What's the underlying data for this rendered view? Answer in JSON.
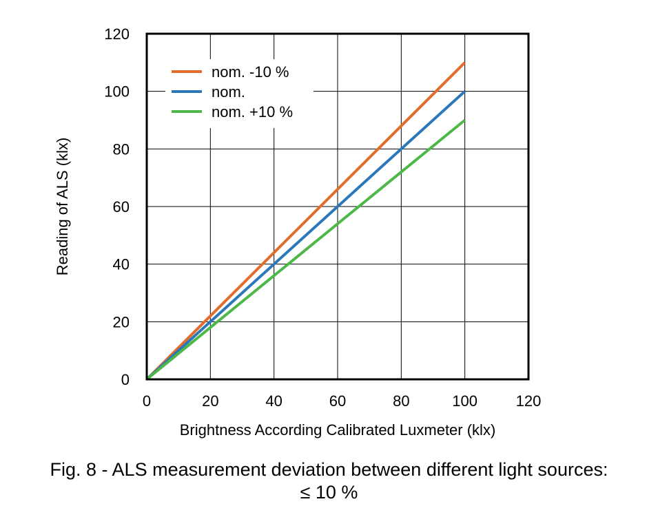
{
  "chart_data": {
    "type": "line",
    "xlabel": "Brightness According Calibrated Luxmeter (klx)",
    "ylabel": "Reading of ALS (klx)",
    "xlim": [
      0,
      120
    ],
    "ylim": [
      0,
      120
    ],
    "xticks": [
      0,
      20,
      40,
      60,
      80,
      100,
      120
    ],
    "yticks": [
      0,
      20,
      40,
      60,
      80,
      100,
      120
    ],
    "grid": true,
    "legend_position": "top-left",
    "series": [
      {
        "name": "nom. -10 %",
        "color": "#e36c2c",
        "x": [
          0,
          100
        ],
        "y": [
          0,
          110
        ]
      },
      {
        "name": "nom.",
        "color": "#2a78b9",
        "x": [
          0,
          100
        ],
        "y": [
          0,
          100
        ]
      },
      {
        "name": "nom. +10 %",
        "color": "#4db847",
        "x": [
          0,
          100
        ],
        "y": [
          0,
          90
        ]
      }
    ]
  },
  "caption": {
    "line1": "Fig. 8 - ALS measurement deviation between different light sources:",
    "line2": "≤ 10 %"
  }
}
